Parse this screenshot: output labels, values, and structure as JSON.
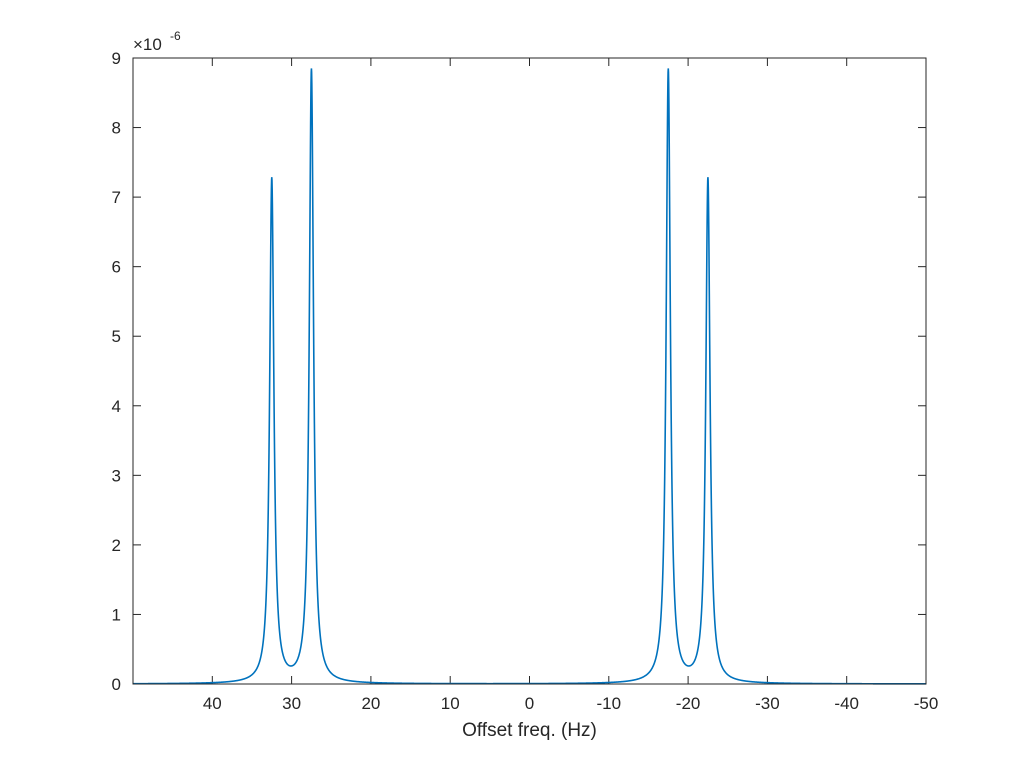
{
  "chart_data": {
    "type": "line",
    "title": "",
    "xlabel": "Offset freq. (Hz)",
    "ylabel": "",
    "x_reversed": true,
    "xlim": [
      50,
      -50
    ],
    "ylim": [
      0,
      9
    ],
    "y_scale_multiplier_text": "×10",
    "y_scale_exponent_text": "-6",
    "x_ticks": [
      40,
      30,
      20,
      10,
      0,
      -10,
      -20,
      -30,
      -40,
      -50
    ],
    "x_tick_labels": [
      "40",
      "30",
      "20",
      "10",
      "0",
      "-10",
      "-20",
      "-30",
      "-40",
      "-50"
    ],
    "y_ticks": [
      0,
      1,
      2,
      3,
      4,
      5,
      6,
      7,
      8,
      9
    ],
    "y_tick_labels": [
      "0",
      "1",
      "2",
      "3",
      "4",
      "5",
      "6",
      "7",
      "8",
      "9"
    ],
    "grid": false,
    "legend": "none",
    "line_color": "#0072BD",
    "peaks": [
      {
        "center_hz": 32.5,
        "height": 7.25
      },
      {
        "center_hz": 27.5,
        "height": 8.82
      },
      {
        "center_hz": -17.5,
        "height": 8.82
      },
      {
        "center_hz": -22.5,
        "height": 7.25
      }
    ],
    "peak_half_width_hz": 0.32,
    "baseline": 0.0
  }
}
